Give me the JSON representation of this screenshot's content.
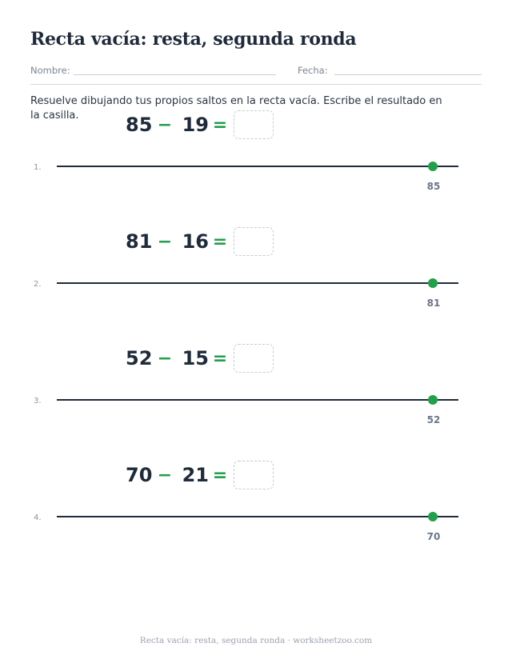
{
  "worksheet": {
    "title": "Recta vacía: resta, segunda ronda",
    "name_label": "Nombre:",
    "date_label": "Fecha:",
    "instructions": "Resuelve dibujando tus propios saltos en la recta vacía. Escribe el resultado en la casilla."
  },
  "problems": [
    {
      "index": "1.",
      "minuend": "85",
      "operator": "−",
      "subtrahend": "19",
      "equals": "=",
      "endpoint": "85"
    },
    {
      "index": "2.",
      "minuend": "81",
      "operator": "−",
      "subtrahend": "16",
      "equals": "=",
      "endpoint": "81"
    },
    {
      "index": "3.",
      "minuend": "52",
      "operator": "−",
      "subtrahend": "15",
      "equals": "=",
      "endpoint": "52"
    },
    {
      "index": "4.",
      "minuend": "70",
      "operator": "−",
      "subtrahend": "21",
      "equals": "=",
      "endpoint": "70"
    }
  ],
  "footer": "Recta vacía: resta, segunda ronda · worksheetzoo.com",
  "colors": {
    "accent": "#22a04b",
    "ink": "#1f2a3a",
    "muted": "#6b7689"
  }
}
